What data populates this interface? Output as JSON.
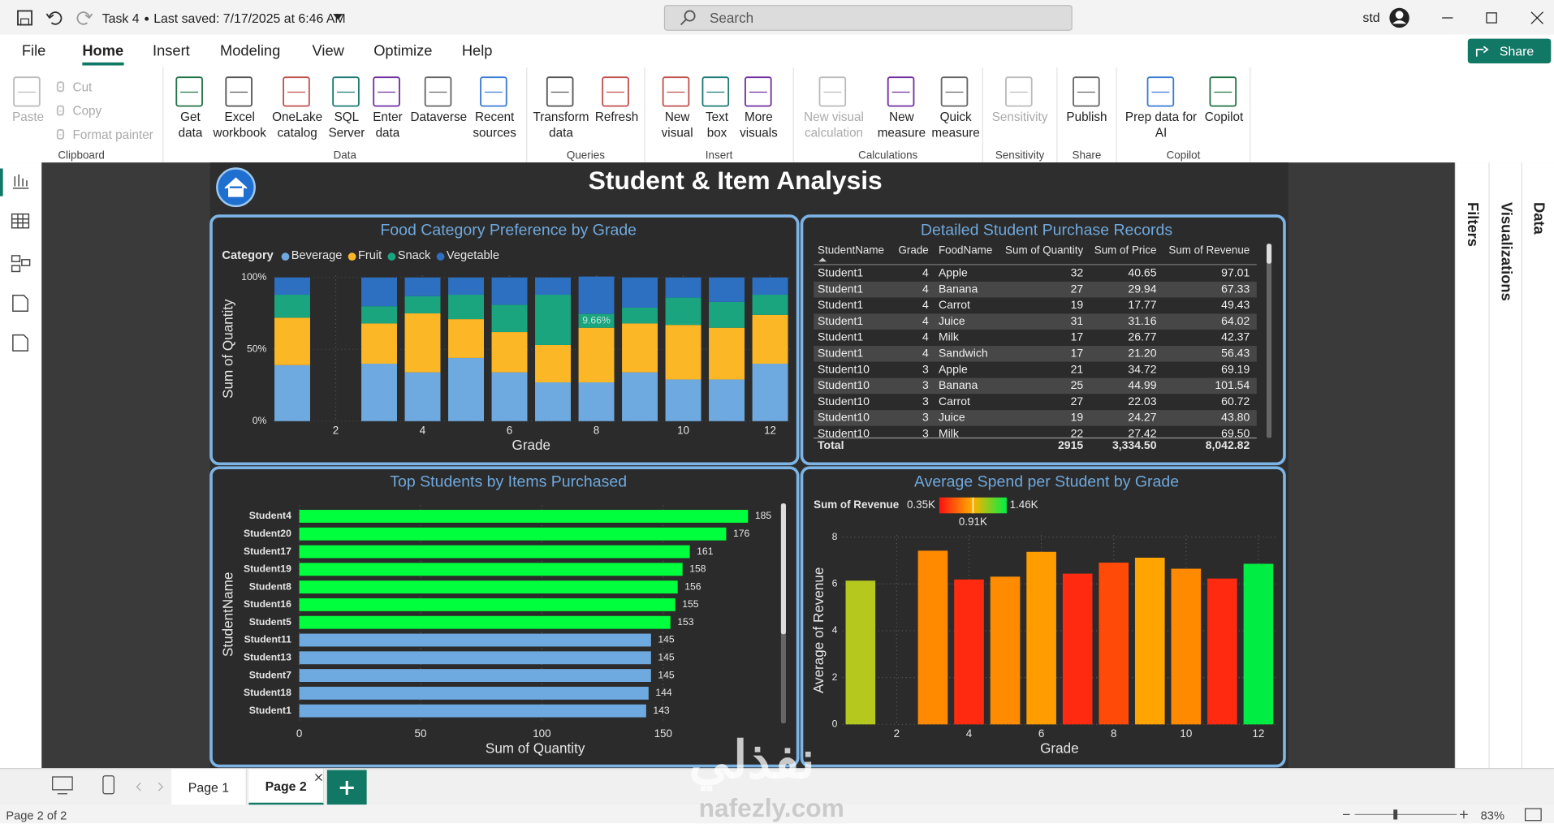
{
  "title_bar": {
    "document": "Task 4",
    "saved": "Last saved: 7/17/2025 at 6:46 AM",
    "search": "Search",
    "user": "std"
  },
  "menu": [
    "File",
    "Home",
    "Insert",
    "Modeling",
    "View",
    "Optimize",
    "Help"
  ],
  "share": "Share",
  "ribbon": [
    {
      "name": "Clipboard",
      "items": [
        "Paste",
        "Cut",
        "Copy",
        "Format painter"
      ]
    },
    {
      "name": "Data",
      "items": [
        "Get data",
        "Excel workbook",
        "OneLake catalog",
        "SQL Server",
        "Enter data",
        "Dataverse",
        "Recent sources"
      ]
    },
    {
      "name": "Queries",
      "items": [
        "Transform data",
        "Refresh"
      ]
    },
    {
      "name": "Insert",
      "items": [
        "New visual",
        "Text box",
        "More visuals"
      ]
    },
    {
      "name": "Calculations",
      "items": [
        "New visual calculation",
        "New measure",
        "Quick measure"
      ]
    },
    {
      "name": "Sensitivity",
      "items": [
        "Sensitivity"
      ]
    },
    {
      "name": "Share",
      "items": [
        "Publish"
      ]
    },
    {
      "name": "Copilot",
      "items": [
        "Prep data for AI",
        "Copilot"
      ]
    }
  ],
  "panes": [
    "Filters",
    "Visualizations",
    "Data"
  ],
  "pages": [
    "Page 1",
    "Page 2"
  ],
  "status": {
    "page": "Page 2 of 2",
    "zoom": "83%"
  },
  "watermark": {
    "logo": "نفذلي",
    "site": "nafezly.com"
  },
  "report": {
    "title": "Student & Item Analysis",
    "food_chart": {
      "type": "stacked_column_100",
      "title": "Food Category Preference by Grade",
      "legend_title": "Category",
      "x_label": "Grade",
      "y_label": "Sum of Quantity",
      "x": [
        1,
        3,
        4,
        5,
        6,
        7,
        8,
        9,
        10,
        11,
        12
      ],
      "xlim": [
        0.5,
        12.5
      ],
      "xticks": [
        2,
        4,
        6,
        8,
        10,
        12
      ],
      "ylim": [
        0,
        100
      ],
      "yticks": [
        {
          "value": 0,
          "label": "0%"
        },
        {
          "value": 50,
          "label": "50%"
        },
        {
          "value": 100,
          "label": "100%"
        }
      ],
      "grid": true,
      "series": [
        {
          "name": "Beverage",
          "color": "#6eaadf",
          "values": [
            39,
            40,
            34,
            44,
            34,
            27,
            27,
            34,
            29,
            29,
            40
          ]
        },
        {
          "name": "Fruit",
          "color": "#fbb726",
          "values": [
            33,
            28,
            41,
            27,
            28,
            26,
            38,
            34,
            38,
            36,
            34
          ]
        },
        {
          "name": "Snack",
          "color": "#1aa57f",
          "values": [
            16,
            12,
            12,
            17,
            19,
            35,
            9.66,
            11,
            19,
            18,
            14
          ],
          "value_labels": [
            null,
            null,
            null,
            null,
            null,
            null,
            "9.66%",
            null,
            null,
            null,
            null
          ]
        },
        {
          "name": "Vegetable",
          "color": "#2d6fc0",
          "values": [
            12,
            20,
            13,
            12,
            19,
            12,
            26,
            21,
            14,
            17,
            12
          ]
        }
      ]
    },
    "records_table": {
      "title": "Detailed Student Purchase Records",
      "columns": [
        "StudentName",
        "Grade",
        "FoodName",
        "Sum of Quantity",
        "Sum of Price",
        "Sum of Revenue"
      ],
      "rows": [
        [
          "Student1",
          "4",
          "Apple",
          "32",
          "40.65",
          "97.01"
        ],
        [
          "Student1",
          "4",
          "Banana",
          "27",
          "29.94",
          "67.33"
        ],
        [
          "Student1",
          "4",
          "Carrot",
          "19",
          "17.77",
          "49.43"
        ],
        [
          "Student1",
          "4",
          "Juice",
          "31",
          "31.16",
          "64.02"
        ],
        [
          "Student1",
          "4",
          "Milk",
          "17",
          "26.77",
          "42.37"
        ],
        [
          "Student1",
          "4",
          "Sandwich",
          "17",
          "21.20",
          "56.43"
        ],
        [
          "Student10",
          "3",
          "Apple",
          "21",
          "34.72",
          "69.19"
        ],
        [
          "Student10",
          "3",
          "Banana",
          "25",
          "44.99",
          "101.54"
        ],
        [
          "Student10",
          "3",
          "Carrot",
          "27",
          "22.03",
          "60.72"
        ],
        [
          "Student10",
          "3",
          "Juice",
          "19",
          "24.27",
          "43.80"
        ],
        [
          "Student10",
          "3",
          "Milk",
          "22",
          "27.42",
          "69.50"
        ]
      ],
      "total": {
        "label": "Total",
        "quantity": "2915",
        "price": "3,334.50",
        "revenue": "8,042.82"
      }
    },
    "students_chart": {
      "type": "hbar",
      "title": "Top Students by Items Purchased",
      "x_label": "Sum of Quantity",
      "y_label": "StudentName",
      "categories": [
        "Student4",
        "Student20",
        "Student17",
        "Student19",
        "Student8",
        "Student16",
        "Student5",
        "Student11",
        "Student13",
        "Student7",
        "Student18",
        "Student1"
      ],
      "values": [
        185,
        176,
        161,
        158,
        156,
        155,
        153,
        145,
        145,
        145,
        144,
        143
      ],
      "colors": [
        "#00ff3c",
        "#00ff3c",
        "#00ff3c",
        "#00ff3c",
        "#00ff3c",
        "#00ff3c",
        "#00ff3c",
        "#6eaadf",
        "#6eaadf",
        "#6eaadf",
        "#6eaadf",
        "#6eaadf"
      ],
      "xlim": [
        0,
        190
      ],
      "xticks": [
        0,
        50,
        100,
        150
      ],
      "grid": true
    },
    "spend_chart": {
      "type": "column",
      "title": "Average Spend per Student by Grade",
      "x_label": "Grade",
      "y_label": "Average of Revenue",
      "legend": {
        "title": "Sum of Revenue",
        "min": "0.35K",
        "mid": "0.91K",
        "max": "1.46K"
      },
      "x": [
        1,
        3,
        4,
        5,
        6,
        7,
        8,
        9,
        10,
        11,
        12
      ],
      "xlim": [
        0.5,
        12.5
      ],
      "xticks": [
        2,
        4,
        6,
        8,
        10,
        12
      ],
      "values": [
        6.14,
        7.42,
        6.19,
        6.31,
        7.37,
        6.44,
        6.91,
        7.12,
        6.65,
        6.23,
        6.86
      ],
      "colors": [
        "#b5c81e",
        "#ff8a00",
        "#ff2a10",
        "#ff8c00",
        "#ff9c00",
        "#ff2a10",
        "#ff4a08",
        "#ffa400",
        "#ff8a00",
        "#ff2a10",
        "#00ee44"
      ],
      "ylim": [
        0,
        8
      ],
      "yticks": [
        0,
        2,
        4,
        6,
        8
      ],
      "grid": true
    }
  }
}
